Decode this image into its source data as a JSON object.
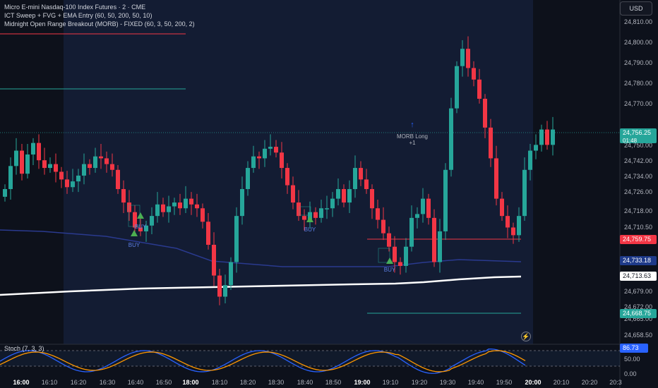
{
  "legend": {
    "title": "Micro E-mini Nasdaq-100 Index Futures · 2 · CME",
    "ind1": "ICT Sweep + FVG + EMA Entry (60, 50, 200, 50, 10)",
    "ind2": "Midnight Open Range Breakout (MORB) - FIXED (60, 3, 50, 200, 2)"
  },
  "currency": "USD",
  "price_axis": [
    "24,810.00",
    "24,800.00",
    "24,790.00",
    "24,780.00",
    "24,770.00",
    "24,750.00",
    "24,742.00",
    "24,734.00",
    "24,726.00",
    "24,718.00",
    "24,710.50",
    "24,679.00",
    "24,672.00",
    "24,665.00",
    "24,658.50"
  ],
  "price_tags": {
    "last": "24,756.25",
    "countdown": "01:48",
    "red_level": "24,759.75",
    "blue_ema": "24,733.18",
    "white_ema": "24,713.63",
    "green_level": "24,668.75"
  },
  "time_axis": [
    "16:00",
    "16:10",
    "16:20",
    "16:30",
    "16:40",
    "16:50",
    "18:00",
    "18:10",
    "18:20",
    "18:30",
    "18:40",
    "18:50",
    "19:00",
    "19:10",
    "19:20",
    "19:30",
    "19:40",
    "19:50",
    "20:00",
    "20:10",
    "20:20",
    "20:3"
  ],
  "signals": {
    "buy": "BUY",
    "morb_long": "MORB Long",
    "morb_plus": "+1"
  },
  "stoch": {
    "label": "Stoch (7, 3, 3)",
    "value": "86.73",
    "axis": [
      "50.00",
      "0.00"
    ]
  },
  "colors": {
    "up": "#26a69a",
    "down": "#f23645",
    "ema_blue": "#2a3a8f",
    "ema_white": "#ffffff",
    "session_bg": "#131c33",
    "stoch_k": "#2962ff",
    "stoch_d": "#ff9800"
  },
  "chart_data": {
    "type": "candlestick",
    "y_range": [
      24650,
      24820
    ],
    "candles_close": [
      24726,
      24738,
      24746,
      24734,
      24744,
      24750,
      24741,
      24737,
      24739,
      24735,
      24731,
      24727,
      24730,
      24733,
      24739,
      24737,
      24743,
      24742,
      24739,
      24736,
      24726,
      24719,
      24714,
      24706,
      24704,
      24707,
      24712,
      24718,
      24714,
      24717,
      24719,
      24716,
      24721,
      24718,
      24716,
      24709,
      24697,
      24681,
      24670,
      24676,
      24688,
      24712,
      24726,
      24737,
      24743,
      24742,
      24747,
      24748,
      24745,
      24737,
      24728,
      24719,
      24712,
      24710,
      24714,
      24711,
      24716,
      24716,
      24721,
      24726,
      24719,
      24726,
      24737,
      24731,
      24726,
      24716,
      24710,
      24703,
      24696,
      24688,
      24686,
      24696,
      24711,
      24713,
      24721,
      24711,
      24688,
      24704,
      24736,
      24768,
      24790,
      24799,
      24789,
      24783,
      24773,
      24758,
      24742,
      24721,
      24712,
      24706,
      24702,
      24712,
      24736,
      24746,
      24749,
      24757,
      24749,
      24757
    ]
  }
}
